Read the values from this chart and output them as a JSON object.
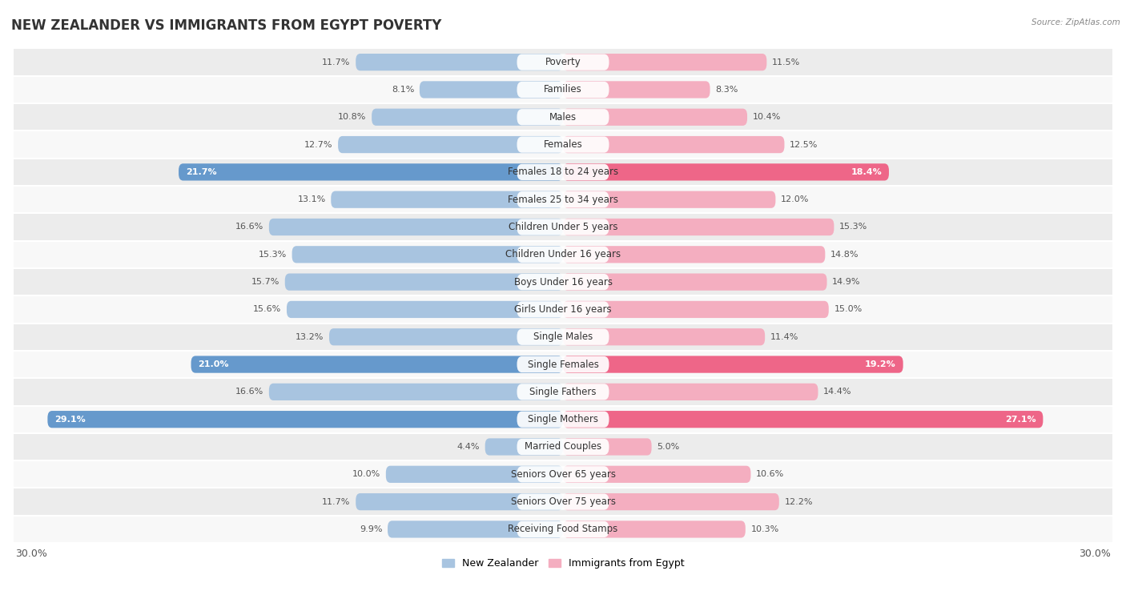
{
  "title": "NEW ZEALANDER VS IMMIGRANTS FROM EGYPT POVERTY",
  "source": "Source: ZipAtlas.com",
  "categories": [
    "Poverty",
    "Families",
    "Males",
    "Females",
    "Females 18 to 24 years",
    "Females 25 to 34 years",
    "Children Under 5 years",
    "Children Under 16 years",
    "Boys Under 16 years",
    "Girls Under 16 years",
    "Single Males",
    "Single Females",
    "Single Fathers",
    "Single Mothers",
    "Married Couples",
    "Seniors Over 65 years",
    "Seniors Over 75 years",
    "Receiving Food Stamps"
  ],
  "left_values": [
    11.7,
    8.1,
    10.8,
    12.7,
    21.7,
    13.1,
    16.6,
    15.3,
    15.7,
    15.6,
    13.2,
    21.0,
    16.6,
    29.1,
    4.4,
    10.0,
    11.7,
    9.9
  ],
  "right_values": [
    11.5,
    8.3,
    10.4,
    12.5,
    18.4,
    12.0,
    15.3,
    14.8,
    14.9,
    15.0,
    11.4,
    19.2,
    14.4,
    27.1,
    5.0,
    10.6,
    12.2,
    10.3
  ],
  "left_color": "#a8c4e0",
  "right_color": "#f4aec0",
  "highlight_rows": [
    4,
    11,
    13
  ],
  "highlight_left_color": "#6699cc",
  "highlight_right_color": "#ee6688",
  "axis_max": 30.0,
  "legend_left": "New Zealander",
  "legend_right": "Immigrants from Egypt",
  "background_color": "#ffffff",
  "row_bg_even": "#ececec",
  "row_bg_odd": "#f8f8f8",
  "title_fontsize": 12,
  "label_fontsize": 8.5,
  "value_fontsize": 8,
  "bar_height": 0.62
}
